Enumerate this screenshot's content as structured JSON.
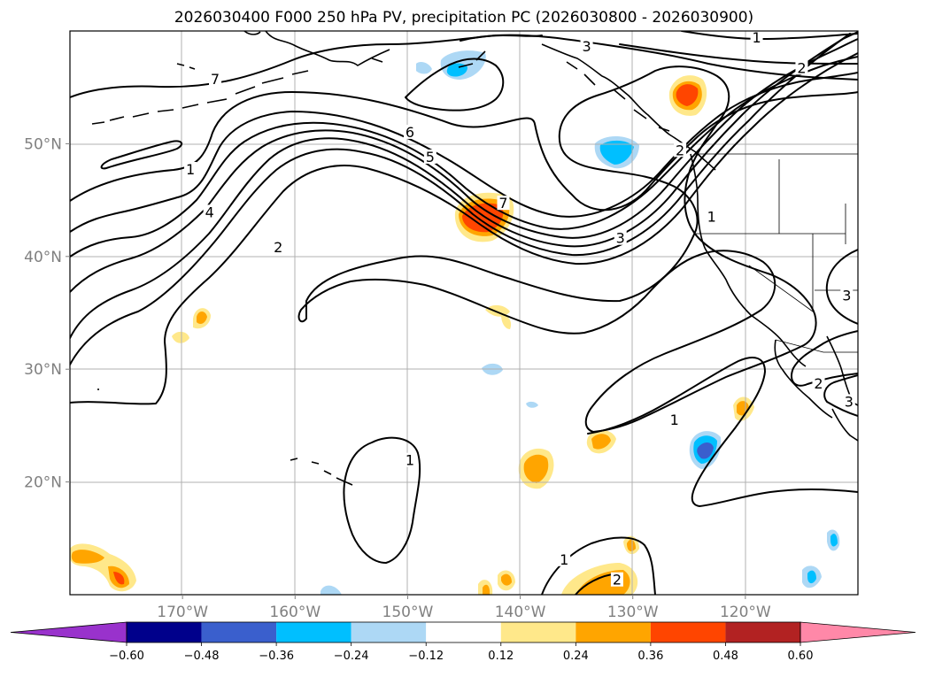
{
  "title": "2026030400 F000 250 hPa PV, precipitation PC (2026030800 - 2026030900)",
  "chart_data": {
    "type": "contour-map",
    "title": "2026030400 F000 250 hPa PV, precipitation PC (2026030800 - 2026030900)",
    "lon_range": [
      -180,
      -110
    ],
    "lat_range": [
      10,
      60
    ],
    "lon_ticks": [
      {
        "value": -170,
        "label": "170°W"
      },
      {
        "value": -160,
        "label": "160°W"
      },
      {
        "value": -150,
        "label": "150°W"
      },
      {
        "value": -140,
        "label": "140°W"
      },
      {
        "value": -130,
        "label": "130°W"
      },
      {
        "value": -120,
        "label": "120°W"
      }
    ],
    "lat_ticks": [
      {
        "value": 20,
        "label": "20°N"
      },
      {
        "value": 30,
        "label": "30°N"
      },
      {
        "value": 40,
        "label": "40°N"
      },
      {
        "value": 50,
        "label": "50°N"
      }
    ],
    "grid": true,
    "pv_contour_labels": [
      {
        "text": "1",
        "lon": -169.3,
        "lat": 47.6
      },
      {
        "text": "2",
        "lon": -161.5,
        "lat": 40.7
      },
      {
        "text": "4",
        "lon": -167.6,
        "lat": 43.8
      },
      {
        "text": "7",
        "lon": -167.1,
        "lat": 55.6
      },
      {
        "text": "6",
        "lon": -149.8,
        "lat": 50.9
      },
      {
        "text": "5",
        "lon": -148.0,
        "lat": 48.7
      },
      {
        "text": "7",
        "lon": -141.5,
        "lat": 44.6
      },
      {
        "text": "3",
        "lon": -131.1,
        "lat": 41.5
      },
      {
        "text": "1",
        "lon": -123.0,
        "lat": 43.4
      },
      {
        "text": "3",
        "lon": -134.1,
        "lat": 58.5
      },
      {
        "text": "1",
        "lon": -119.0,
        "lat": 59.3
      },
      {
        "text": "2",
        "lon": -115.0,
        "lat": 56.6
      },
      {
        "text": "2",
        "lon": -125.8,
        "lat": 49.3
      },
      {
        "text": "1",
        "lon": -149.8,
        "lat": 21.8
      },
      {
        "text": "1",
        "lon": -126.3,
        "lat": 25.4
      },
      {
        "text": "2",
        "lon": -113.5,
        "lat": 28.6
      },
      {
        "text": "3",
        "lon": -110.8,
        "lat": 27.0
      },
      {
        "text": "3",
        "lon": -111.0,
        "lat": 36.4
      },
      {
        "text": "1",
        "lon": -136.1,
        "lat": 13.0
      },
      {
        "text": "2",
        "lon": -131.4,
        "lat": 11.2
      }
    ],
    "precip_pc_colorbar": {
      "levels": [
        -0.6,
        -0.48,
        -0.36,
        -0.24,
        -0.12,
        0.12,
        0.24,
        0.36,
        0.48,
        0.6
      ],
      "labels": [
        "−0.60",
        "−0.48",
        "−0.36",
        "−0.24",
        "−0.12",
        "0.12",
        "0.24",
        "0.36",
        "0.48",
        "0.60"
      ],
      "colors": [
        "#9932cc",
        "#00008b",
        "#3a5fcd",
        "#00bfff",
        "#add8f5",
        "#ffffff",
        "#ffe88a",
        "#ffa500",
        "#ff4500",
        "#b22222",
        "#ff88a8"
      ],
      "extend": "both"
    },
    "precip_pc_features": [
      {
        "sign": "positive",
        "max": 0.48,
        "lon": -143.1,
        "lat": 43.9
      },
      {
        "sign": "positive",
        "max": 0.48,
        "lon": -125.5,
        "lat": 54.1
      },
      {
        "sign": "negative",
        "min": -0.36,
        "lon": -131.2,
        "lat": 50.0
      },
      {
        "sign": "negative",
        "min": -0.24,
        "lon": -143.9,
        "lat": 57.3
      },
      {
        "sign": "negative",
        "min": -0.48,
        "lon": -123.3,
        "lat": 22.8
      },
      {
        "sign": "positive",
        "max": 0.36,
        "lon": -138.9,
        "lat": 21.2
      },
      {
        "sign": "positive",
        "max": 0.36,
        "lon": -133.6,
        "lat": 23.7
      },
      {
        "sign": "positive",
        "max": 0.24,
        "lon": -121.6,
        "lat": 26.8
      },
      {
        "sign": "positive",
        "max": 0.24,
        "lon": -138.8,
        "lat": 34.6
      },
      {
        "sign": "positive",
        "max": 0.24,
        "lon": -170.1,
        "lat": 34.6
      },
      {
        "sign": "positive",
        "max": 0.24,
        "lon": -172.0,
        "lat": 32.8
      },
      {
        "sign": "negative",
        "min": -0.24,
        "lon": -142.6,
        "lat": 30.0
      },
      {
        "sign": "negative",
        "min": -0.12,
        "lon": -138.7,
        "lat": 26.8
      },
      {
        "sign": "positive",
        "max": 0.48,
        "lon": -176.6,
        "lat": 12.9
      },
      {
        "sign": "positive",
        "max": 0.36,
        "lon": -131.0,
        "lat": 11.0
      },
      {
        "sign": "positive",
        "max": 0.24,
        "lon": -140.7,
        "lat": 11.5
      },
      {
        "sign": "negative",
        "min": -0.36,
        "lon": -111.4,
        "lat": 11.5
      },
      {
        "sign": "negative",
        "min": -0.36,
        "lon": -110.4,
        "lat": 14.8
      }
    ]
  }
}
